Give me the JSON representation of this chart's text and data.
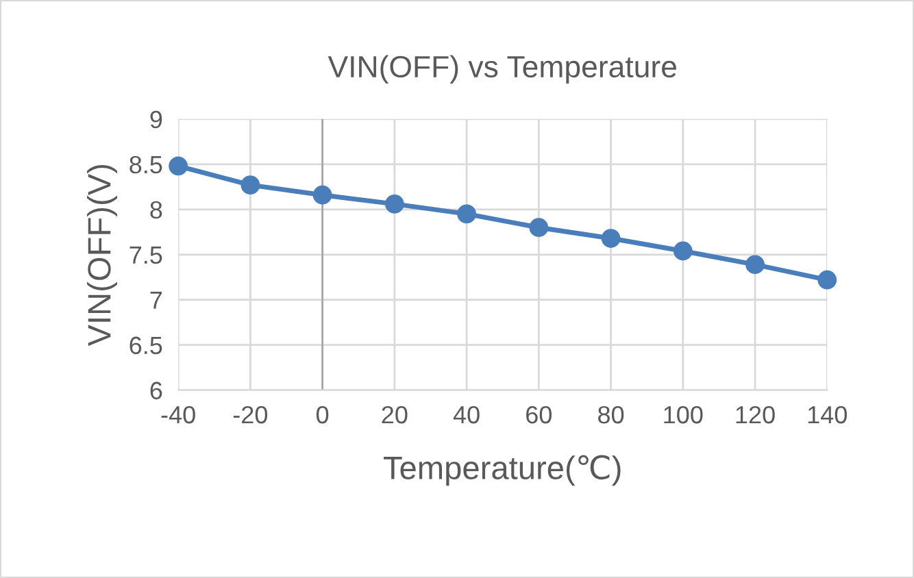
{
  "chart_data": {
    "type": "line",
    "title": "VIN(OFF) vs Temperature",
    "xlabel": "Temperature(℃)",
    "ylabel": "VIN(OFF)(V)",
    "x": [
      -40,
      -20,
      0,
      20,
      40,
      60,
      80,
      100,
      120,
      140
    ],
    "series": [
      {
        "color": "#4a7ebb",
        "values": [
          8.48,
          8.27,
          8.16,
          8.06,
          7.95,
          7.8,
          7.68,
          7.54,
          7.39,
          7.22
        ]
      }
    ],
    "xlim": [
      -40,
      140
    ],
    "xticks": [
      -40,
      -20,
      0,
      20,
      40,
      60,
      80,
      100,
      120,
      140
    ],
    "ylim": [
      6,
      9
    ],
    "yticks": [
      6,
      6.5,
      7,
      7.5,
      8,
      8.5,
      9
    ],
    "grid": true,
    "marker": "circle",
    "line_style": "solid",
    "legend": false
  }
}
